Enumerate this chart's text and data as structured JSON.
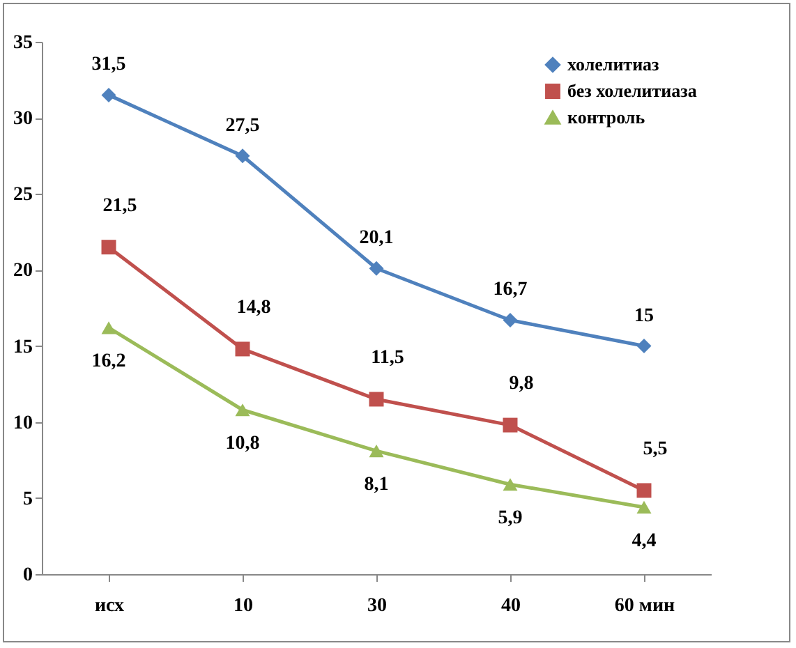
{
  "chart_data": {
    "type": "line",
    "categories": [
      "исх",
      "10",
      "30",
      "40",
      "60 мин"
    ],
    "series": [
      {
        "name": "холелитиаз",
        "color": "#4f81bd",
        "marker": "diamond",
        "values": [
          31.5,
          27.5,
          20.1,
          16.7,
          15
        ],
        "value_labels": [
          "31,5",
          "27,5",
          "20,1",
          "16,7",
          "15"
        ]
      },
      {
        "name": "без холелитиаза",
        "color": "#c0504d",
        "marker": "square",
        "values": [
          21.5,
          14.8,
          11.5,
          9.8,
          5.5
        ],
        "value_labels": [
          "21,5",
          "14,8",
          "11,5",
          "9,8",
          "5,5"
        ]
      },
      {
        "name": "контроль",
        "color": "#9bbb59",
        "marker": "triangle",
        "values": [
          16.2,
          10.8,
          8.1,
          5.9,
          4.4
        ],
        "value_labels": [
          "16,2",
          "10,8",
          "8,1",
          "5,9",
          "4,4"
        ]
      }
    ],
    "ylim": [
      0,
      35
    ],
    "yticks": [
      0,
      5,
      10,
      15,
      20,
      25,
      30,
      35
    ],
    "legend": "top right",
    "grid": false,
    "line_style": "solid"
  }
}
